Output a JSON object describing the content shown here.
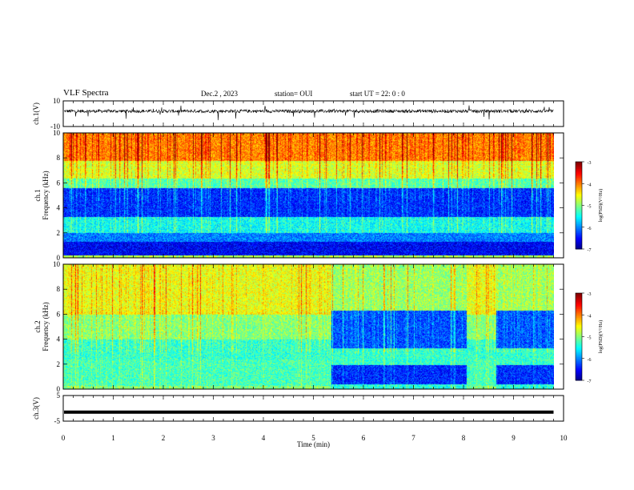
{
  "header": {
    "title": "VLF Spectra",
    "date": "Dec.2  , 2023",
    "station": "station= OUI",
    "start": "start  UT =   22: 0  : 0"
  },
  "chart_data": [
    {
      "type": "line",
      "ylabel": "ch.1(V)",
      "ylim": [
        -10,
        10
      ],
      "yticks": [
        "10",
        "-10"
      ],
      "description_of_signal": "noisy waveform centred near +2 V with spikes",
      "series": [
        {
          "values_approx_mean": 2
        }
      ]
    },
    {
      "type": "heatmap",
      "ylabel": "ch.1\nFrequency  (kHz)",
      "ylabel_lines": [
        "ch.1",
        "Frequency  (kHz)"
      ],
      "ylim": [
        0,
        10
      ],
      "yticks": [
        "0",
        "2",
        "4",
        "6",
        "8",
        "10"
      ],
      "colorbar": {
        "label": "log(PSD)(V²/Hz)",
        "ticks": [
          "-3",
          "-4",
          "-5",
          "-6",
          "-7"
        ],
        "range": [
          -7,
          -3
        ]
      }
    },
    {
      "type": "heatmap",
      "ylabel_lines": [
        "ch.2",
        "Frequency  (kHz)"
      ],
      "ylim": [
        0,
        10
      ],
      "yticks": [
        "0",
        "2",
        "4",
        "6",
        "8",
        "10"
      ],
      "colorbar": {
        "label": "log(PSD)(V²/Hz)",
        "ticks": [
          "-3",
          "-4",
          "-5",
          "-6",
          "-7"
        ],
        "range": [
          -7,
          -3
        ]
      }
    },
    {
      "type": "line",
      "ylabel": "ch.3(V)",
      "ylim": [
        -5,
        5
      ],
      "yticks": [
        "5",
        "-5"
      ],
      "series": [
        {
          "values_constant": -1.5
        }
      ]
    }
  ],
  "xaxis": {
    "label": "Time  (min)",
    "range": [
      0,
      10
    ],
    "ticks": [
      "0",
      "1",
      "2",
      "3",
      "4",
      "5",
      "6",
      "7",
      "8",
      "9",
      "10"
    ],
    "data_end": 9.8
  }
}
